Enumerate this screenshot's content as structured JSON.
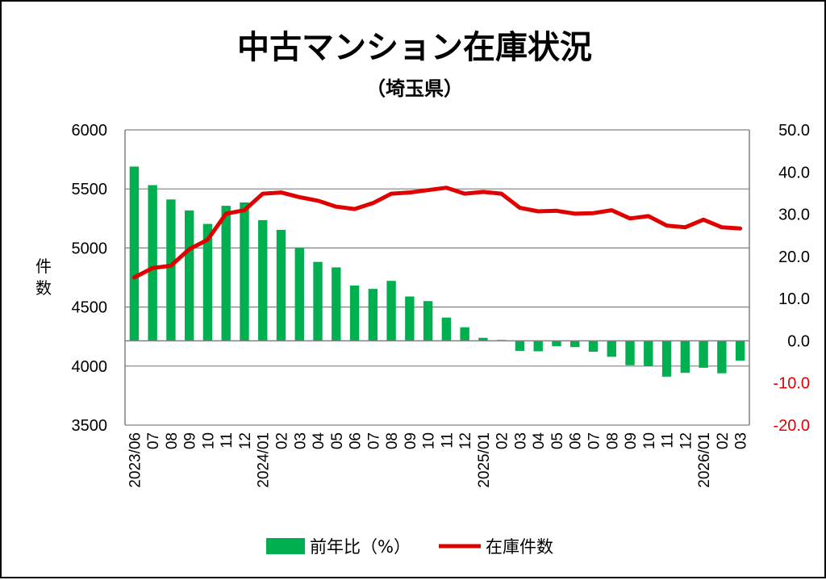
{
  "chart_data": {
    "type": "bar+line",
    "title": "中古マンション在庫状況",
    "subtitle": "（埼玉県）",
    "ylabel": "件数",
    "categories": [
      "2023/06",
      "07",
      "08",
      "09",
      "10",
      "11",
      "12",
      "2024/01",
      "02",
      "03",
      "04",
      "05",
      "06",
      "07",
      "08",
      "09",
      "10",
      "11",
      "12",
      "2025/01",
      "02",
      "03",
      "04",
      "05",
      "06",
      "07",
      "08",
      "09",
      "10",
      "11",
      "12",
      "2026/01",
      "02",
      "03"
    ],
    "left_axis": {
      "min": 3500,
      "max": 6000,
      "ticks": [
        "6000",
        "5500",
        "5000",
        "4500",
        "4000",
        "3500"
      ]
    },
    "right_axis": {
      "min": -20,
      "max": 50,
      "ticks": [
        "50.0",
        "40.0",
        "30.0",
        "20.0",
        "10.0",
        "0.0",
        "-10.0",
        "-20.0"
      ],
      "negative_color": "#e00000"
    },
    "series": [
      {
        "name": "前年比（%）",
        "type": "bar",
        "axis": "right",
        "color": "#00b050",
        "values": [
          41.3,
          36.9,
          33.5,
          30.9,
          27.7,
          32.0,
          32.8,
          28.6,
          26.3,
          22.1,
          18.7,
          17.4,
          13.1,
          12.3,
          14.2,
          10.5,
          9.4,
          5.5,
          3.2,
          0.7,
          0.2,
          -2.4,
          -2.5,
          -1.3,
          -1.5,
          -2.6,
          -3.8,
          -5.8,
          -6.0,
          -8.5,
          -7.6,
          -6.4,
          -7.7,
          -4.7
        ]
      },
      {
        "name": "在庫件数",
        "type": "line",
        "axis": "left",
        "color": "#e00000",
        "values": [
          4750,
          4830,
          4850,
          4990,
          5070,
          5290,
          5320,
          5460,
          5470,
          5430,
          5400,
          5350,
          5330,
          5380,
          5460,
          5470,
          5490,
          5510,
          5460,
          5475,
          5460,
          5340,
          5310,
          5315,
          5290,
          5295,
          5320,
          5250,
          5270,
          5190,
          5175,
          5240,
          5175,
          5165
        ]
      }
    ],
    "legend": [
      "前年比（%）",
      "在庫件数"
    ],
    "legend_position": "bottom",
    "grid": "horizontal"
  }
}
